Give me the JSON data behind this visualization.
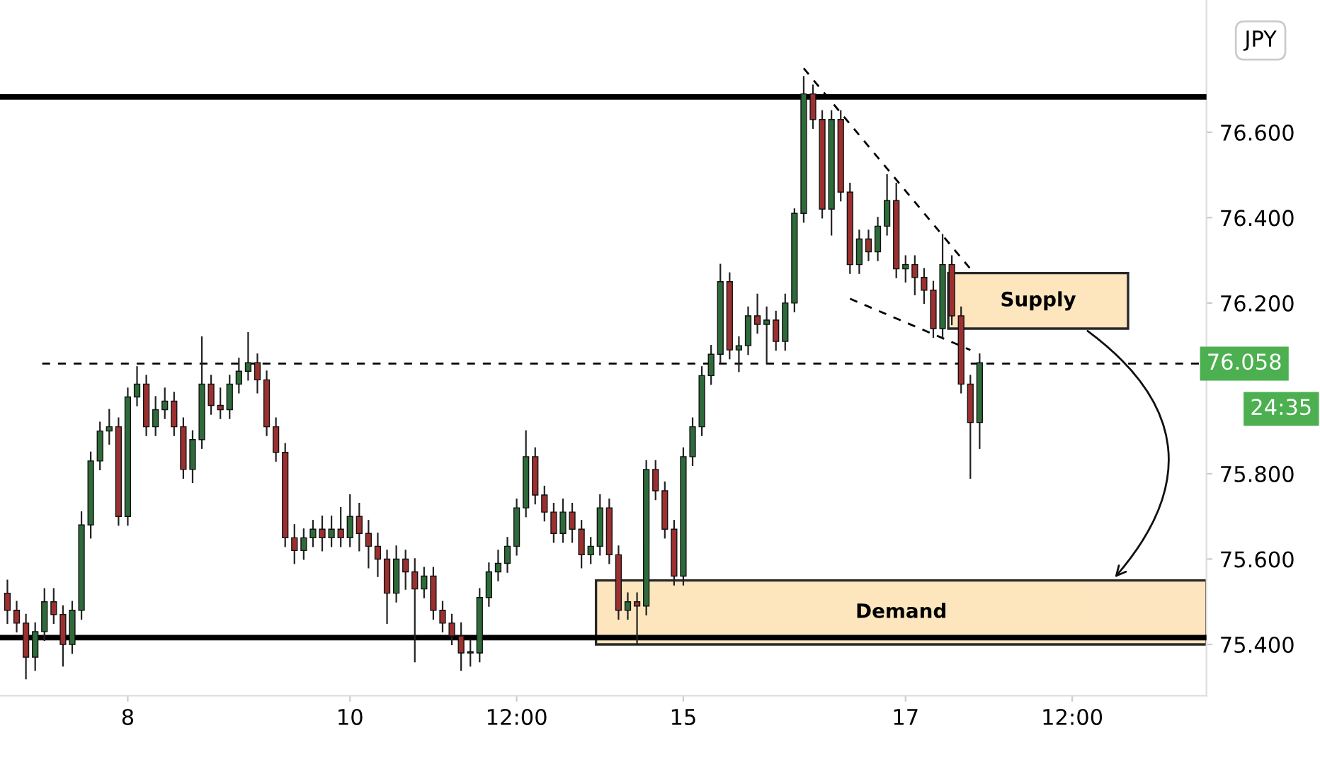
{
  "chart_data": {
    "type": "candlestick",
    "categories": [
      null,
      null,
      null,
      null,
      null,
      null,
      null,
      null,
      null,
      null,
      null,
      null,
      null,
      "8",
      null,
      null,
      null,
      null,
      null,
      null,
      null,
      null,
      null,
      null,
      null,
      null,
      null,
      null,
      null,
      null,
      null,
      null,
      null,
      null,
      null,
      null,
      null,
      "10",
      null,
      null,
      null,
      null,
      null,
      null,
      null,
      null,
      null,
      null,
      null,
      null,
      null,
      null,
      null,
      null,
      null,
      "12:00",
      null,
      null,
      null,
      null,
      null,
      null,
      null,
      null,
      null,
      null,
      null,
      null,
      null,
      null,
      null,
      null,
      null,
      "15",
      null,
      null,
      null,
      null,
      null,
      null,
      null,
      null,
      null,
      null,
      null,
      null,
      null,
      null,
      null,
      null,
      null,
      null,
      null,
      null,
      null,
      null,
      null,
      "17",
      null,
      null,
      null,
      null,
      null,
      null,
      null,
      null,
      null,
      null,
      null,
      null,
      null,
      null,
      null,
      null,
      null,
      "12:00",
      null,
      null,
      null,
      null,
      null,
      null,
      null,
      null,
      null,
      null,
      null,
      null,
      null,
      null
    ],
    "ohlc": [
      [
        75.52,
        75.55,
        75.45,
        75.48
      ],
      [
        75.48,
        75.5,
        75.43,
        75.45
      ],
      [
        75.45,
        75.47,
        75.32,
        75.37
      ],
      [
        75.37,
        75.45,
        75.34,
        75.43
      ],
      [
        75.43,
        75.53,
        75.41,
        75.5
      ],
      [
        75.5,
        75.53,
        75.45,
        75.47
      ],
      [
        75.47,
        75.49,
        75.35,
        75.4
      ],
      [
        75.4,
        75.5,
        75.38,
        75.48
      ],
      [
        75.48,
        75.71,
        75.46,
        75.68
      ],
      [
        75.68,
        75.85,
        75.65,
        75.83
      ],
      [
        75.83,
        75.92,
        75.81,
        75.9
      ],
      [
        75.9,
        75.95,
        75.87,
        75.91
      ],
      [
        75.91,
        75.93,
        75.68,
        75.7
      ],
      [
        75.7,
        76.0,
        75.68,
        75.98
      ],
      [
        75.98,
        76.05,
        75.96,
        76.01
      ],
      [
        76.01,
        76.03,
        75.89,
        75.91
      ],
      [
        75.91,
        75.98,
        75.89,
        75.95
      ],
      [
        75.95,
        76.0,
        75.93,
        75.97
      ],
      [
        75.97,
        75.99,
        75.89,
        75.91
      ],
      [
        75.91,
        75.93,
        75.79,
        75.81
      ],
      [
        75.81,
        75.9,
        75.78,
        75.88
      ],
      [
        75.88,
        76.12,
        75.86,
        76.01
      ],
      [
        76.01,
        76.03,
        75.94,
        75.96
      ],
      [
        75.96,
        76.0,
        75.93,
        75.95
      ],
      [
        75.95,
        76.03,
        75.93,
        76.01
      ],
      [
        76.01,
        76.07,
        75.99,
        76.04
      ],
      [
        76.04,
        76.13,
        76.02,
        76.06
      ],
      [
        76.06,
        76.08,
        75.99,
        76.02
      ],
      [
        76.02,
        76.04,
        75.89,
        75.91
      ],
      [
        75.91,
        75.93,
        75.83,
        75.85
      ],
      [
        75.85,
        75.87,
        75.63,
        75.65
      ],
      [
        75.65,
        75.68,
        75.59,
        75.62
      ],
      [
        75.62,
        75.67,
        75.6,
        75.65
      ],
      [
        75.65,
        75.69,
        75.63,
        75.67
      ],
      [
        75.67,
        75.7,
        75.62,
        75.65
      ],
      [
        75.65,
        75.7,
        75.63,
        75.67
      ],
      [
        75.67,
        75.72,
        75.63,
        75.65
      ],
      [
        75.65,
        75.75,
        75.63,
        75.7
      ],
      [
        75.7,
        75.73,
        75.62,
        75.66
      ],
      [
        75.66,
        75.69,
        75.58,
        75.63
      ],
      [
        75.63,
        75.66,
        75.56,
        75.6
      ],
      [
        75.6,
        75.62,
        75.45,
        75.52
      ],
      [
        75.52,
        75.63,
        75.5,
        75.6
      ],
      [
        75.6,
        75.62,
        75.53,
        75.57
      ],
      [
        75.57,
        75.6,
        75.36,
        75.53
      ],
      [
        75.53,
        75.58,
        75.51,
        75.56
      ],
      [
        75.56,
        75.58,
        75.46,
        75.48
      ],
      [
        75.48,
        75.5,
        75.43,
        75.45
      ],
      [
        75.45,
        75.47,
        75.4,
        75.42
      ],
      [
        75.42,
        75.45,
        75.34,
        75.38
      ],
      [
        75.38,
        75.41,
        75.35,
        75.38
      ],
      [
        75.38,
        75.53,
        75.36,
        75.51
      ],
      [
        75.51,
        75.59,
        75.49,
        75.57
      ],
      [
        75.57,
        75.62,
        75.55,
        75.59
      ],
      [
        75.59,
        75.65,
        75.57,
        75.63
      ],
      [
        75.63,
        75.74,
        75.61,
        75.72
      ],
      [
        75.72,
        75.9,
        75.7,
        75.84
      ],
      [
        75.84,
        75.86,
        75.73,
        75.75
      ],
      [
        75.75,
        75.77,
        75.69,
        75.71
      ],
      [
        75.71,
        75.73,
        75.64,
        75.66
      ],
      [
        75.66,
        75.74,
        75.64,
        75.71
      ],
      [
        75.71,
        75.73,
        75.64,
        75.67
      ],
      [
        75.67,
        75.69,
        75.58,
        75.61
      ],
      [
        75.61,
        75.65,
        75.59,
        75.63
      ],
      [
        75.63,
        75.75,
        75.61,
        75.72
      ],
      [
        75.72,
        75.74,
        75.59,
        75.61
      ],
      [
        75.61,
        75.63,
        75.46,
        75.48
      ],
      [
        75.48,
        75.52,
        75.46,
        75.5
      ],
      [
        75.5,
        75.52,
        75.4,
        75.49
      ],
      [
        75.49,
        75.83,
        75.47,
        75.81
      ],
      [
        75.81,
        75.83,
        75.74,
        75.76
      ],
      [
        75.76,
        75.78,
        75.65,
        75.67
      ],
      [
        75.67,
        75.69,
        75.54,
        75.56
      ],
      [
        75.56,
        75.86,
        75.54,
        75.84
      ],
      [
        75.84,
        75.93,
        75.82,
        75.91
      ],
      [
        75.91,
        76.05,
        75.89,
        76.03
      ],
      [
        76.03,
        76.1,
        76.01,
        76.08
      ],
      [
        76.08,
        76.29,
        76.06,
        76.25
      ],
      [
        76.25,
        76.27,
        76.07,
        76.09
      ],
      [
        76.09,
        76.12,
        76.04,
        76.1
      ],
      [
        76.1,
        76.19,
        76.08,
        76.17
      ],
      [
        76.17,
        76.22,
        76.13,
        76.15
      ],
      [
        76.15,
        76.19,
        76.06,
        76.16
      ],
      [
        76.16,
        76.18,
        76.09,
        76.11
      ],
      [
        76.11,
        76.22,
        76.09,
        76.2
      ],
      [
        76.2,
        76.42,
        76.18,
        76.41
      ],
      [
        76.41,
        76.73,
        76.39,
        76.69
      ],
      [
        76.69,
        76.71,
        76.61,
        76.63
      ],
      [
        76.63,
        76.65,
        76.4,
        76.42
      ],
      [
        76.42,
        76.65,
        76.36,
        76.63
      ],
      [
        76.63,
        76.65,
        76.44,
        76.46
      ],
      [
        76.46,
        76.48,
        76.27,
        76.29
      ],
      [
        76.29,
        76.37,
        76.27,
        76.35
      ],
      [
        76.35,
        76.37,
        76.3,
        76.32
      ],
      [
        76.32,
        76.4,
        76.3,
        76.38
      ],
      [
        76.38,
        76.5,
        76.36,
        76.44
      ],
      [
        76.44,
        76.48,
        76.26,
        76.28
      ],
      [
        76.28,
        76.31,
        76.25,
        76.29
      ],
      [
        76.29,
        76.31,
        76.22,
        76.26
      ],
      [
        76.26,
        76.28,
        76.2,
        76.23
      ],
      [
        76.23,
        76.25,
        76.12,
        76.14
      ],
      [
        76.14,
        76.36,
        76.12,
        76.29
      ],
      [
        76.29,
        76.31,
        76.15,
        76.17
      ],
      [
        76.17,
        76.19,
        75.99,
        76.01
      ],
      [
        76.01,
        76.03,
        75.79,
        75.92
      ],
      [
        75.92,
        76.08,
        75.86,
        76.06
      ],
      null,
      null,
      null,
      null,
      null,
      null,
      null,
      null,
      null,
      null,
      null,
      null,
      null,
      null,
      null,
      null,
      null,
      null,
      null,
      null,
      null,
      null,
      null,
      null
    ],
    "series": [
      {
        "type": "line",
        "color": "#000000",
        "line_style": "dashed",
        "values": [
          null,
          null,
          null,
          null,
          null,
          null,
          null,
          null,
          null,
          null,
          null,
          null,
          null,
          null,
          null,
          null,
          null,
          null,
          null,
          null,
          null,
          null,
          null,
          null,
          null,
          null,
          null,
          null,
          null,
          null,
          null,
          null,
          null,
          null,
          null,
          null,
          null,
          null,
          null,
          null,
          null,
          null,
          null,
          null,
          null,
          null,
          null,
          null,
          null,
          null,
          null,
          null,
          null,
          null,
          null,
          null,
          null,
          null,
          null,
          null,
          null,
          null,
          null,
          null,
          null,
          null,
          null,
          null,
          null,
          null,
          null,
          null,
          null,
          null,
          null,
          null,
          null,
          null,
          null,
          null,
          null,
          null,
          null,
          null,
          null,
          null,
          76.75,
          null,
          null,
          null,
          null,
          null,
          null,
          null,
          null,
          null,
          null,
          null,
          null,
          null,
          null,
          null,
          null,
          null,
          76.28,
          null,
          null,
          null,
          null,
          null,
          null,
          null,
          null,
          null,
          null,
          null,
          null,
          null,
          null,
          null,
          null,
          null,
          null,
          null,
          null,
          null,
          null,
          null,
          null,
          null
        ]
      },
      {
        "type": "line",
        "color": "#000000",
        "line_style": "dashed",
        "values": [
          null,
          null,
          null,
          null,
          null,
          null,
          null,
          null,
          null,
          null,
          null,
          null,
          null,
          null,
          null,
          null,
          null,
          null,
          null,
          null,
          null,
          null,
          null,
          null,
          null,
          null,
          null,
          null,
          null,
          null,
          null,
          null,
          null,
          null,
          null,
          null,
          null,
          null,
          null,
          null,
          null,
          null,
          null,
          null,
          null,
          null,
          null,
          null,
          null,
          null,
          null,
          null,
          null,
          null,
          null,
          null,
          null,
          null,
          null,
          null,
          null,
          null,
          null,
          null,
          null,
          null,
          null,
          null,
          null,
          null,
          null,
          null,
          null,
          null,
          null,
          null,
          null,
          null,
          null,
          null,
          null,
          null,
          null,
          null,
          null,
          null,
          null,
          null,
          null,
          null,
          null,
          76.21,
          null,
          null,
          null,
          null,
          null,
          null,
          null,
          null,
          null,
          null,
          null,
          null,
          76.09,
          null,
          null,
          null,
          null,
          null,
          null,
          null,
          null,
          null,
          null,
          null,
          null,
          null,
          null,
          null,
          null,
          null,
          null,
          null,
          null,
          null,
          null,
          null,
          null,
          null
        ]
      }
    ],
    "ylim": [
      75.28,
      76.91
    ],
    "yticks": [
      {
        "value": 75.4,
        "label": "75.400"
      },
      {
        "value": 75.6,
        "label": "75.600"
      },
      {
        "value": 75.8,
        "label": "75.800"
      },
      {
        "value": 76.2,
        "label": "76.200"
      },
      {
        "value": 76.4,
        "label": "76.400"
      },
      {
        "value": 76.6,
        "label": "76.600"
      }
    ],
    "ref_lines": [
      {
        "axis": "y",
        "value": 76.683,
        "color": "#000000",
        "line_style": "solid"
      },
      {
        "axis": "y",
        "value": 75.416,
        "color": "#000000",
        "line_style": "solid"
      },
      {
        "axis": "y",
        "value": 76.058,
        "label": "76.058",
        "color": "#000000",
        "line_style": "dashed"
      }
    ],
    "bands": [
      {
        "axis": "y",
        "from": 76.14,
        "to": 76.27,
        "label": "Supply",
        "color": "#fde3b8"
      },
      {
        "axis": "y",
        "from": 75.4,
        "to": 75.55,
        "label": "Demand",
        "color": "#fde3b8"
      }
    ],
    "annotations": [
      "24:35",
      "JPY"
    ],
    "grid": false,
    "legend": false
  }
}
